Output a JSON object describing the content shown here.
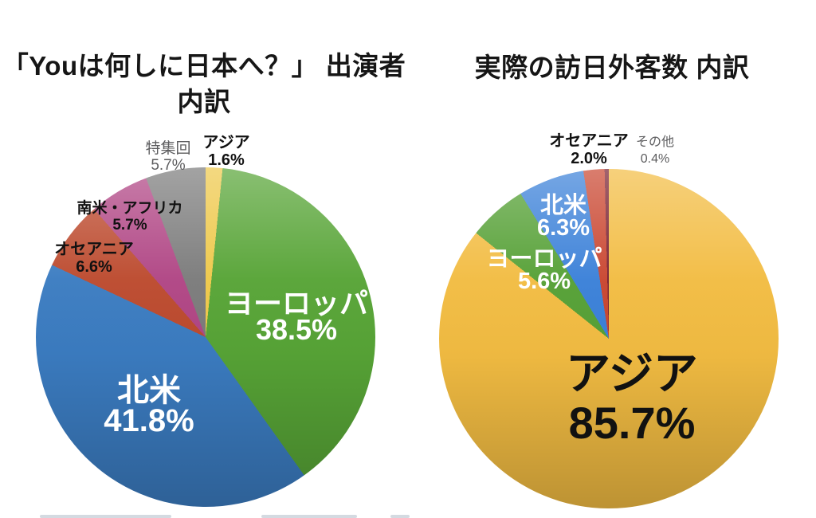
{
  "left_chart": {
    "title_line1": "「Youは何しに日本へ？」",
    "title_line2": "出演者 内訳",
    "labels": {
      "asia": {
        "name": "アジア",
        "value": "1.6%"
      },
      "europe": {
        "name": "ヨーロッパ",
        "value": "38.5%"
      },
      "north_america": {
        "name": "北米",
        "value": "41.8%"
      },
      "oceania": {
        "name": "オセアニア",
        "value": "6.6%"
      },
      "south_america_africa": {
        "name": "南米・アフリカ",
        "value": "5.7%"
      },
      "special_episodes": {
        "name": "特集回",
        "value": "5.7%"
      }
    }
  },
  "right_chart": {
    "title": "実際の訪日外客数 内訳",
    "labels": {
      "asia": {
        "name": "アジア",
        "value": "85.7%"
      },
      "europe": {
        "name": "ヨーロッパ",
        "value": "5.6%"
      },
      "north_america": {
        "name": "北米",
        "value": "6.3%"
      },
      "oceania": {
        "name": "オセアニア",
        "value": "2.0%"
      },
      "other": {
        "name": "その他",
        "value": "0.4%"
      }
    }
  },
  "chart_data": [
    {
      "type": "pie",
      "title": "「Youは何しに日本へ？」出演者 内訳",
      "categories": [
        "アジア",
        "ヨーロッパ",
        "北米",
        "オセアニア",
        "南米・アフリカ",
        "特集回"
      ],
      "values": [
        1.6,
        38.5,
        41.8,
        6.6,
        5.7,
        5.7
      ],
      "unit": "%",
      "colors": [
        "#eec84a",
        "#57a436",
        "#3b7cc1",
        "#bc4a2e",
        "#b04584",
        "#7b7b7b"
      ],
      "start_angle_deg": 0,
      "direction": "clockwise",
      "inside_label_color": "#ffffff",
      "outside_label_color": "#111111",
      "muted_label_color": "#5c5c5e"
    },
    {
      "type": "pie",
      "title": "実際の訪日外客数 内訳",
      "categories": [
        "アジア",
        "ヨーロッパ",
        "北米",
        "オセアニア",
        "その他"
      ],
      "values": [
        85.7,
        5.6,
        6.3,
        2.0,
        0.4
      ],
      "unit": "%",
      "colors": [
        "#f2bc42",
        "#55a035",
        "#3a80d8",
        "#c9452f",
        "#7a2030"
      ],
      "start_angle_deg": 0,
      "direction": "clockwise",
      "inside_label_color": "#ffffff",
      "outside_label_color": "#111111",
      "muted_label_color": "#5c5c5e"
    }
  ]
}
